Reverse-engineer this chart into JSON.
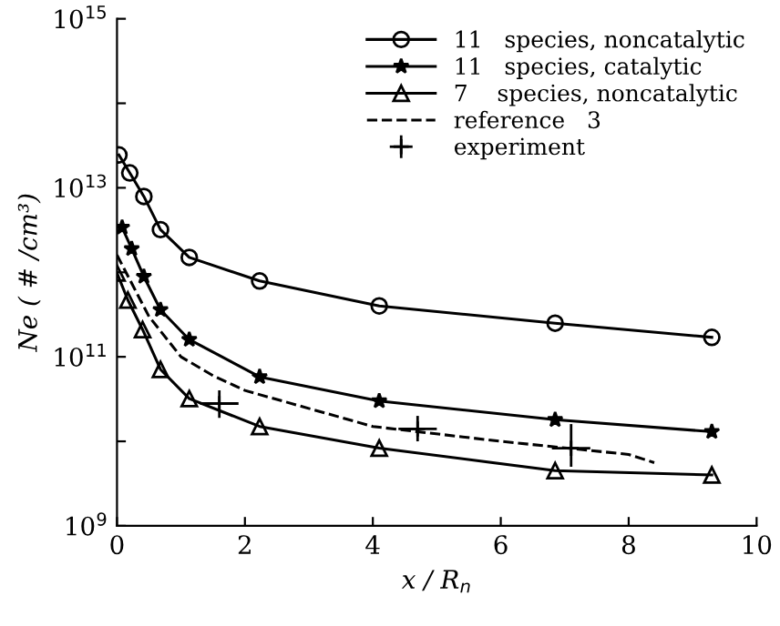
{
  "chart_data": {
    "type": "line",
    "xlabel": "x / R$_{n}$",
    "ylabel": "Ne ( # /cm³)",
    "log": "y",
    "xlim": [
      0,
      10
    ],
    "ylim": [
      1000000000.0,
      1000000000000000.0
    ],
    "xticks": [
      0,
      2,
      4,
      6,
      8,
      10
    ],
    "yticks": [
      {
        "value": 1000000000.0,
        "label": "10$^{9}$"
      },
      {
        "value": 10000000000.0,
        "label": null
      },
      {
        "value": 100000000000.0,
        "label": "10$^{11}$"
      },
      {
        "value": 1000000000000.0,
        "label": null
      },
      {
        "value": 10000000000000.0,
        "label": "10$^{13}$"
      },
      {
        "value": 100000000000000.0,
        "label": null
      },
      {
        "value": 1000000000000000.0,
        "label": "10$^{15}$"
      }
    ],
    "grid": false,
    "legend": "top right",
    "series": [
      {
        "name": "11   species, noncatalytic",
        "color": "#000000",
        "marker": "circle",
        "line_style": "solid",
        "x": [
          0.03,
          0.2,
          0.42,
          0.68,
          1.13,
          2.23,
          4.1,
          6.85,
          9.3
        ],
        "values": [
          24500000000000.0,
          15000000000000.0,
          7900000000000.0,
          3200000000000.0,
          1500000000000.0,
          790000000000.0,
          400000000000.0,
          250000000000.0,
          170000000000.0
        ]
      },
      {
        "name": "11   species, catalytic",
        "color": "#000000",
        "marker": "star",
        "line_style": "solid",
        "x": [
          0.08,
          0.23,
          0.42,
          0.68,
          1.13,
          2.23,
          4.1,
          6.85,
          9.3
        ],
        "values": [
          3400000000000.0,
          1900000000000.0,
          890000000000.0,
          360000000000.0,
          160000000000.0,
          58000000000.0,
          30000000000.0,
          18000000000.0,
          13000000000.0
        ]
      },
      {
        "name": "7    species, noncatalytic",
        "color": "#000000",
        "marker": "triangle",
        "line_style": "solid",
        "x": [
          0,
          0.17,
          0.4,
          0.68,
          1.13,
          2.23,
          4.1,
          6.85,
          9.3
        ],
        "values": [
          980000000000.0,
          470000000000.0,
          210000000000.0,
          71000000000.0,
          32000000000.0,
          15000000000.0,
          8300000000.0,
          4500000000.0,
          4000000000.0
        ]
      },
      {
        "name": "reference   3",
        "color": "#000000",
        "marker": "none",
        "line_style": "dashed",
        "x": [
          0,
          0.5,
          1,
          1.5,
          2,
          4,
          6,
          8,
          8.4
        ],
        "values": [
          1600000000000.0,
          300000000000.0,
          100000000000.0,
          60000000000.0,
          40000000000.0,
          15000000000.0,
          10000000000.0,
          7000000000.0,
          5600000000.0
        ]
      },
      {
        "name": "experiment",
        "type": "scatter",
        "color": "#000000",
        "marker": "cross",
        "x": [
          1.6,
          4.7,
          7.1
        ],
        "values": [
          28000000000.0,
          14000000000.0,
          8300000000.0
        ],
        "errors": [
          [
            19000000000.0,
            40000000000.0
          ],
          [
            10000000000.0,
            20000000000.0
          ],
          [
            5000000000.0,
            16000000000.0
          ]
        ],
        "xerrors": [
          0.3,
          0.3,
          0.3
        ]
      }
    ]
  }
}
